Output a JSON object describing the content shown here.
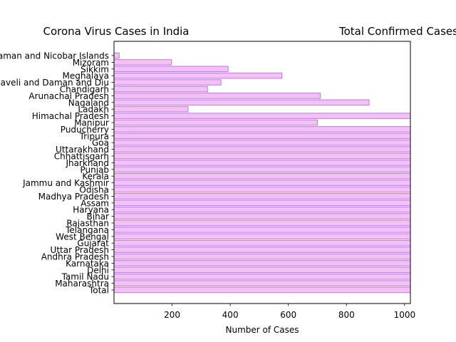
{
  "chart_data": {
    "type": "bar",
    "orientation": "horizontal",
    "title": "Corona Virus Cases in India",
    "title_right": "Total Confirmed Cases",
    "xlabel": "Number of Cases",
    "ylabel": "",
    "xlim": [
      0,
      1020
    ],
    "xticks": [
      200,
      400,
      600,
      800,
      1000
    ],
    "grid": false,
    "categories": [
      "Andaman and Nicobar Islands",
      "Mizoram",
      "Sikkim",
      "Meghalaya",
      "Dadra and Nagar Haveli and Daman and Diu",
      "Chandigarh",
      "Arunachal Pradesh",
      "Nagaland",
      "Ladakh",
      "Himachal Pradesh",
      "Manipur",
      "Puducherry",
      "Tripura",
      "Goa",
      "Uttarakhand",
      "Chhattisgarh",
      "Jharkhand",
      "Punjab",
      "Kerala",
      "Jammu and Kashmir",
      "Odisha",
      "Madhya Pradesh",
      "Assam",
      "Haryana",
      "Bihar",
      "Rajasthan",
      "Telangana",
      "West Bengal",
      "Gujarat",
      "Uttar Pradesh",
      "Andhra Pradesh",
      "Karnataka",
      "Delhi",
      "Tamil Nadu",
      "Maharashtra",
      "Total"
    ],
    "values": [
      18,
      198,
      393,
      578,
      368,
      322,
      710,
      878,
      255,
      1020,
      700,
      1020,
      1020,
      1020,
      1020,
      1020,
      1020,
      1020,
      1020,
      1020,
      1020,
      1020,
      1020,
      1020,
      1020,
      1020,
      1020,
      1020,
      1020,
      1020,
      1020,
      1020,
      1020,
      1020,
      1020,
      1020
    ],
    "colors": {
      "bar_fill": "#f5c0fa",
      "bar_edge": "#b57edc",
      "axis": "#000000"
    }
  }
}
